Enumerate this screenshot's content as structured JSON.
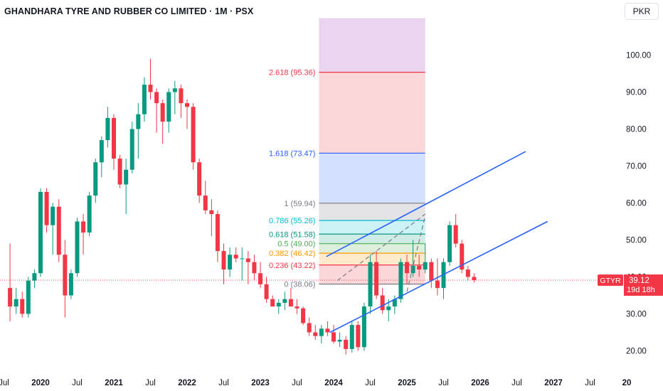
{
  "header": {
    "title": "GHANDHARA TYRE AND RUBBER CO LIMITED · 1M · PSX",
    "currency": "PKR"
  },
  "price_tag": {
    "symbol": "GTYR",
    "price": "39.12",
    "countdown": "19d 18h",
    "color": "#f23645"
  },
  "colors": {
    "up": "#089981",
    "down": "#f23645",
    "channel": "#2962ff",
    "dashed": "#787b86"
  },
  "chart_data": {
    "type": "candlestick",
    "title": "GHANDHARA TYRE AND RUBBER CO LIMITED · 1M · PSX",
    "ylim": [
      17,
      110
    ],
    "y_ticks": [
      "20.00",
      "30.00",
      "40.00",
      "50.00",
      "60.00",
      "70.00",
      "80.00",
      "90.00",
      "100.00"
    ],
    "x_ticks": [
      {
        "label": "Jul",
        "t": 2019.5,
        "bold": false
      },
      {
        "label": "2020",
        "t": 2020.0,
        "bold": true
      },
      {
        "label": "Jul",
        "t": 2020.5,
        "bold": false
      },
      {
        "label": "2021",
        "t": 2021.0,
        "bold": true
      },
      {
        "label": "Jul",
        "t": 2021.5,
        "bold": false
      },
      {
        "label": "2022",
        "t": 2022.0,
        "bold": true
      },
      {
        "label": "Jul",
        "t": 2022.5,
        "bold": false
      },
      {
        "label": "2023",
        "t": 2023.0,
        "bold": true
      },
      {
        "label": "Jul",
        "t": 2023.5,
        "bold": false
      },
      {
        "label": "2024",
        "t": 2024.0,
        "bold": true
      },
      {
        "label": "Jul",
        "t": 2024.5,
        "bold": false
      },
      {
        "label": "2025",
        "t": 2025.0,
        "bold": true
      },
      {
        "label": "Jul",
        "t": 2025.5,
        "bold": false
      },
      {
        "label": "2026",
        "t": 2026.0,
        "bold": true
      },
      {
        "label": "Jul",
        "t": 2026.5,
        "bold": false
      },
      {
        "label": "2027",
        "t": 2027.0,
        "bold": true
      },
      {
        "label": "Jul",
        "t": 2027.5,
        "bold": false
      },
      {
        "label": "20",
        "t": 2028.0,
        "bold": true
      }
    ],
    "start": "2019-08",
    "ohlc": [
      [
        37.0,
        49.0,
        28.0,
        32.0
      ],
      [
        32.0,
        37.0,
        30.0,
        34.0
      ],
      [
        34.0,
        36.0,
        29.0,
        30.0
      ],
      [
        30.0,
        40.0,
        29.0,
        39.0
      ],
      [
        39.0,
        42.0,
        37.0,
        41.0
      ],
      [
        41.0,
        64.0,
        40.0,
        63.0
      ],
      [
        63.0,
        64.0,
        52.0,
        54.0
      ],
      [
        54.0,
        60.0,
        46.0,
        59.0
      ],
      [
        59.0,
        61.0,
        44.0,
        46.0
      ],
      [
        46.0,
        50.0,
        29.0,
        35.0
      ],
      [
        35.0,
        42.0,
        34.0,
        41.0
      ],
      [
        41.0,
        56.0,
        40.0,
        55.0
      ],
      [
        55.0,
        57.0,
        46.0,
        52.0
      ],
      [
        52.0,
        63.0,
        51.0,
        62.0
      ],
      [
        62.0,
        72.0,
        60.0,
        71.0
      ],
      [
        71.0,
        78.0,
        67.0,
        77.0
      ],
      [
        77.0,
        86.0,
        75.0,
        83.0
      ],
      [
        83.0,
        84.0,
        69.0,
        72.0
      ],
      [
        72.0,
        73.0,
        64.0,
        65.0
      ],
      [
        65.0,
        72.0,
        57.0,
        69.0
      ],
      [
        69.0,
        82.0,
        68.0,
        80.0
      ],
      [
        80.0,
        87.0,
        72.0,
        84.0
      ],
      [
        84.0,
        94.0,
        82.0,
        92.0
      ],
      [
        92.0,
        99.0,
        88.0,
        90.0
      ],
      [
        90.0,
        91.0,
        79.0,
        87.0
      ],
      [
        87.0,
        88.0,
        76.0,
        82.0
      ],
      [
        82.0,
        91.0,
        79.0,
        90.0
      ],
      [
        90.0,
        93.0,
        84.0,
        91.0
      ],
      [
        91.0,
        92.0,
        83.0,
        87.0
      ],
      [
        87.0,
        88.0,
        80.0,
        86.0
      ],
      [
        86.0,
        87.0,
        69.0,
        71.0
      ],
      [
        71.0,
        72.0,
        60.0,
        62.0
      ],
      [
        62.0,
        66.0,
        57.0,
        58.0
      ],
      [
        58.0,
        61.0,
        51.0,
        57.0
      ],
      [
        57.0,
        58.0,
        44.0,
        47.0
      ],
      [
        47.0,
        49.0,
        38.0,
        42.0
      ],
      [
        42.0,
        48.0,
        40.0,
        46.0
      ],
      [
        46.0,
        48.0,
        44.0,
        45.0
      ],
      [
        45.0,
        48.0,
        39.0,
        45.0
      ],
      [
        45.0,
        47.0,
        38.0,
        44.0
      ],
      [
        44.0,
        46.0,
        39.0,
        41.0
      ],
      [
        41.0,
        44.0,
        37.0,
        38.0
      ],
      [
        38.0,
        40.0,
        33.0,
        34.0
      ],
      [
        34.0,
        35.0,
        32.0,
        32.0
      ],
      [
        32.0,
        34.0,
        30.0,
        33.0
      ],
      [
        33.0,
        36.0,
        31.0,
        34.0
      ],
      [
        34.0,
        37.0,
        32.0,
        32.0
      ],
      [
        32.0,
        34.0,
        30.0,
        31.5
      ],
      [
        31.5,
        32.0,
        27.0,
        27.5
      ],
      [
        27.5,
        29.0,
        24.0,
        25.0
      ],
      [
        25.0,
        27.0,
        23.0,
        24.0
      ],
      [
        24.0,
        27.0,
        22.0,
        26.0
      ],
      [
        26.0,
        28.0,
        24.0,
        25.0
      ],
      [
        25.0,
        27.0,
        22.0,
        22.5
      ],
      [
        22.5,
        25.0,
        21.0,
        23.0
      ],
      [
        23.0,
        24.0,
        19.0,
        20.5
      ],
      [
        20.5,
        28.0,
        19.5,
        27.0
      ],
      [
        27.0,
        28.0,
        20.0,
        21.0
      ],
      [
        21.0,
        33.0,
        20.0,
        32.0
      ],
      [
        32.0,
        46.0,
        30.0,
        44.0
      ],
      [
        44.0,
        47.0,
        34.0,
        35.0
      ],
      [
        35.0,
        37.0,
        30.0,
        31.0
      ],
      [
        31.0,
        34.0,
        28.0,
        32.0
      ],
      [
        32.0,
        35.0,
        30.0,
        34.0
      ],
      [
        34.0,
        45.0,
        33.0,
        44.0
      ],
      [
        44.0,
        46.0,
        38.0,
        41.0
      ],
      [
        41.0,
        50.0,
        40.0,
        43.0
      ],
      [
        43.0,
        46.0,
        40.0,
        42.0
      ],
      [
        42.0,
        49.0,
        41.0,
        44.0
      ],
      [
        44.0,
        45.0,
        37.0,
        39.0
      ],
      [
        39.0,
        45.0,
        35.0,
        37.0
      ],
      [
        37.0,
        45.0,
        34.0,
        44.0
      ],
      [
        44.0,
        55.0,
        43.0,
        54.0
      ],
      [
        54.0,
        57.0,
        48.0,
        49.0
      ],
      [
        49.0,
        50.0,
        41.0,
        42.0
      ],
      [
        42.0,
        43.0,
        39.0,
        40.0
      ],
      [
        40.0,
        41.0,
        38.5,
        39.12
      ]
    ],
    "fibonacci": {
      "range": [
        2023.8,
        2025.25
      ],
      "levels": [
        {
          "label": "0 (38.06)",
          "value": 38.06,
          "color": "#787b86"
        },
        {
          "label": "0.236 (43.22)",
          "value": 43.22,
          "color": "#f23645"
        },
        {
          "label": "0.382 (46.42)",
          "value": 46.42,
          "color": "#ff9800"
        },
        {
          "label": "0.5 (49.00)",
          "value": 49.0,
          "color": "#4caf50"
        },
        {
          "label": "0.618 (51.58)",
          "value": 51.58,
          "color": "#089981"
        },
        {
          "label": "0.786 (55.26)",
          "value": 55.26,
          "color": "#00bcd4"
        },
        {
          "label": "1 (59.94)",
          "value": 59.94,
          "color": "#787b86"
        },
        {
          "label": "1.618 (73.47)",
          "value": 73.47,
          "color": "#2962ff"
        },
        {
          "label": "2.618 (95.36)",
          "value": 95.36,
          "color": "#f23645"
        },
        {
          "label": "",
          "value": 110,
          "color": "#9c27b0"
        }
      ],
      "zone_colors": [
        "#f2364533",
        "#ff980033",
        "#4caf5033",
        "#08998133",
        "#00bcd433",
        "#78788633",
        "#2962ff33",
        "#f2364533",
        "#9c27b033"
      ]
    },
    "channel_lines": [
      {
        "from": [
          2023.9,
          45.5
        ],
        "to": [
          2026.62,
          73.9
        ]
      },
      {
        "from": [
          2023.95,
          25.0
        ],
        "to": [
          2026.92,
          55.0
        ]
      }
    ],
    "dashed_lines": [
      {
        "from": [
          2024.05,
          39.0
        ],
        "to": [
          2025.25,
          57.0
        ]
      },
      {
        "from": [
          2025.0,
          36.0
        ],
        "to": [
          2025.25,
          56.5
        ]
      }
    ],
    "current_price": 39.12
  }
}
